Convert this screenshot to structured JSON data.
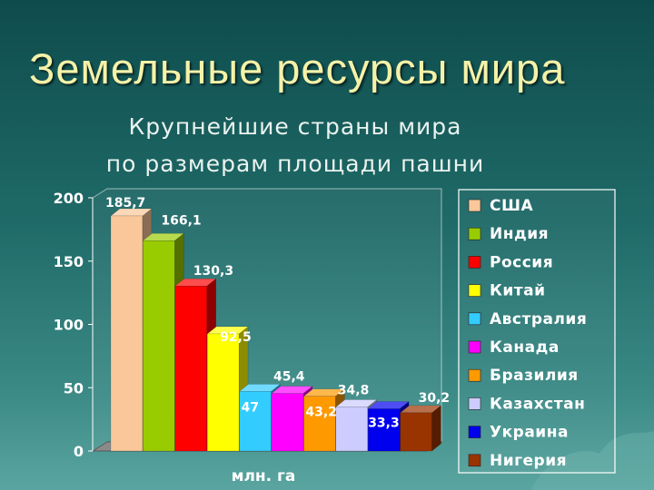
{
  "slide": {
    "title": "Земельные ресурсы мира",
    "subtitle_line1": "Крупнейшие страны мира",
    "subtitle_line2": "по размерам площади пашни"
  },
  "chart_data": {
    "type": "bar",
    "categories": [
      "США",
      "Индия",
      "Россия",
      "Китай",
      "Австралия",
      "Канада",
      "Бразилия",
      "Казахстан",
      "Украина",
      "Нигерия"
    ],
    "values": [
      185.7,
      166.1,
      130.3,
      92.5,
      47,
      45.4,
      43.2,
      34.8,
      33.3,
      30.2
    ],
    "value_labels": [
      "185,7",
      "166,1",
      "130,3",
      "92,5",
      "47",
      "45,4",
      "43,2",
      "34,8",
      "33,3",
      "30,2"
    ],
    "colors": [
      "#f9c79a",
      "#99cc00",
      "#ff0000",
      "#ffff00",
      "#33ccff",
      "#ff00ff",
      "#ff9900",
      "#ccccff",
      "#0000ee",
      "#993300"
    ],
    "xlabel": "млн. га",
    "ylabel": "",
    "ylim": [
      0,
      200
    ],
    "yticks": [
      0,
      50,
      100,
      150,
      200
    ],
    "legend_position": "right",
    "grid": false
  }
}
